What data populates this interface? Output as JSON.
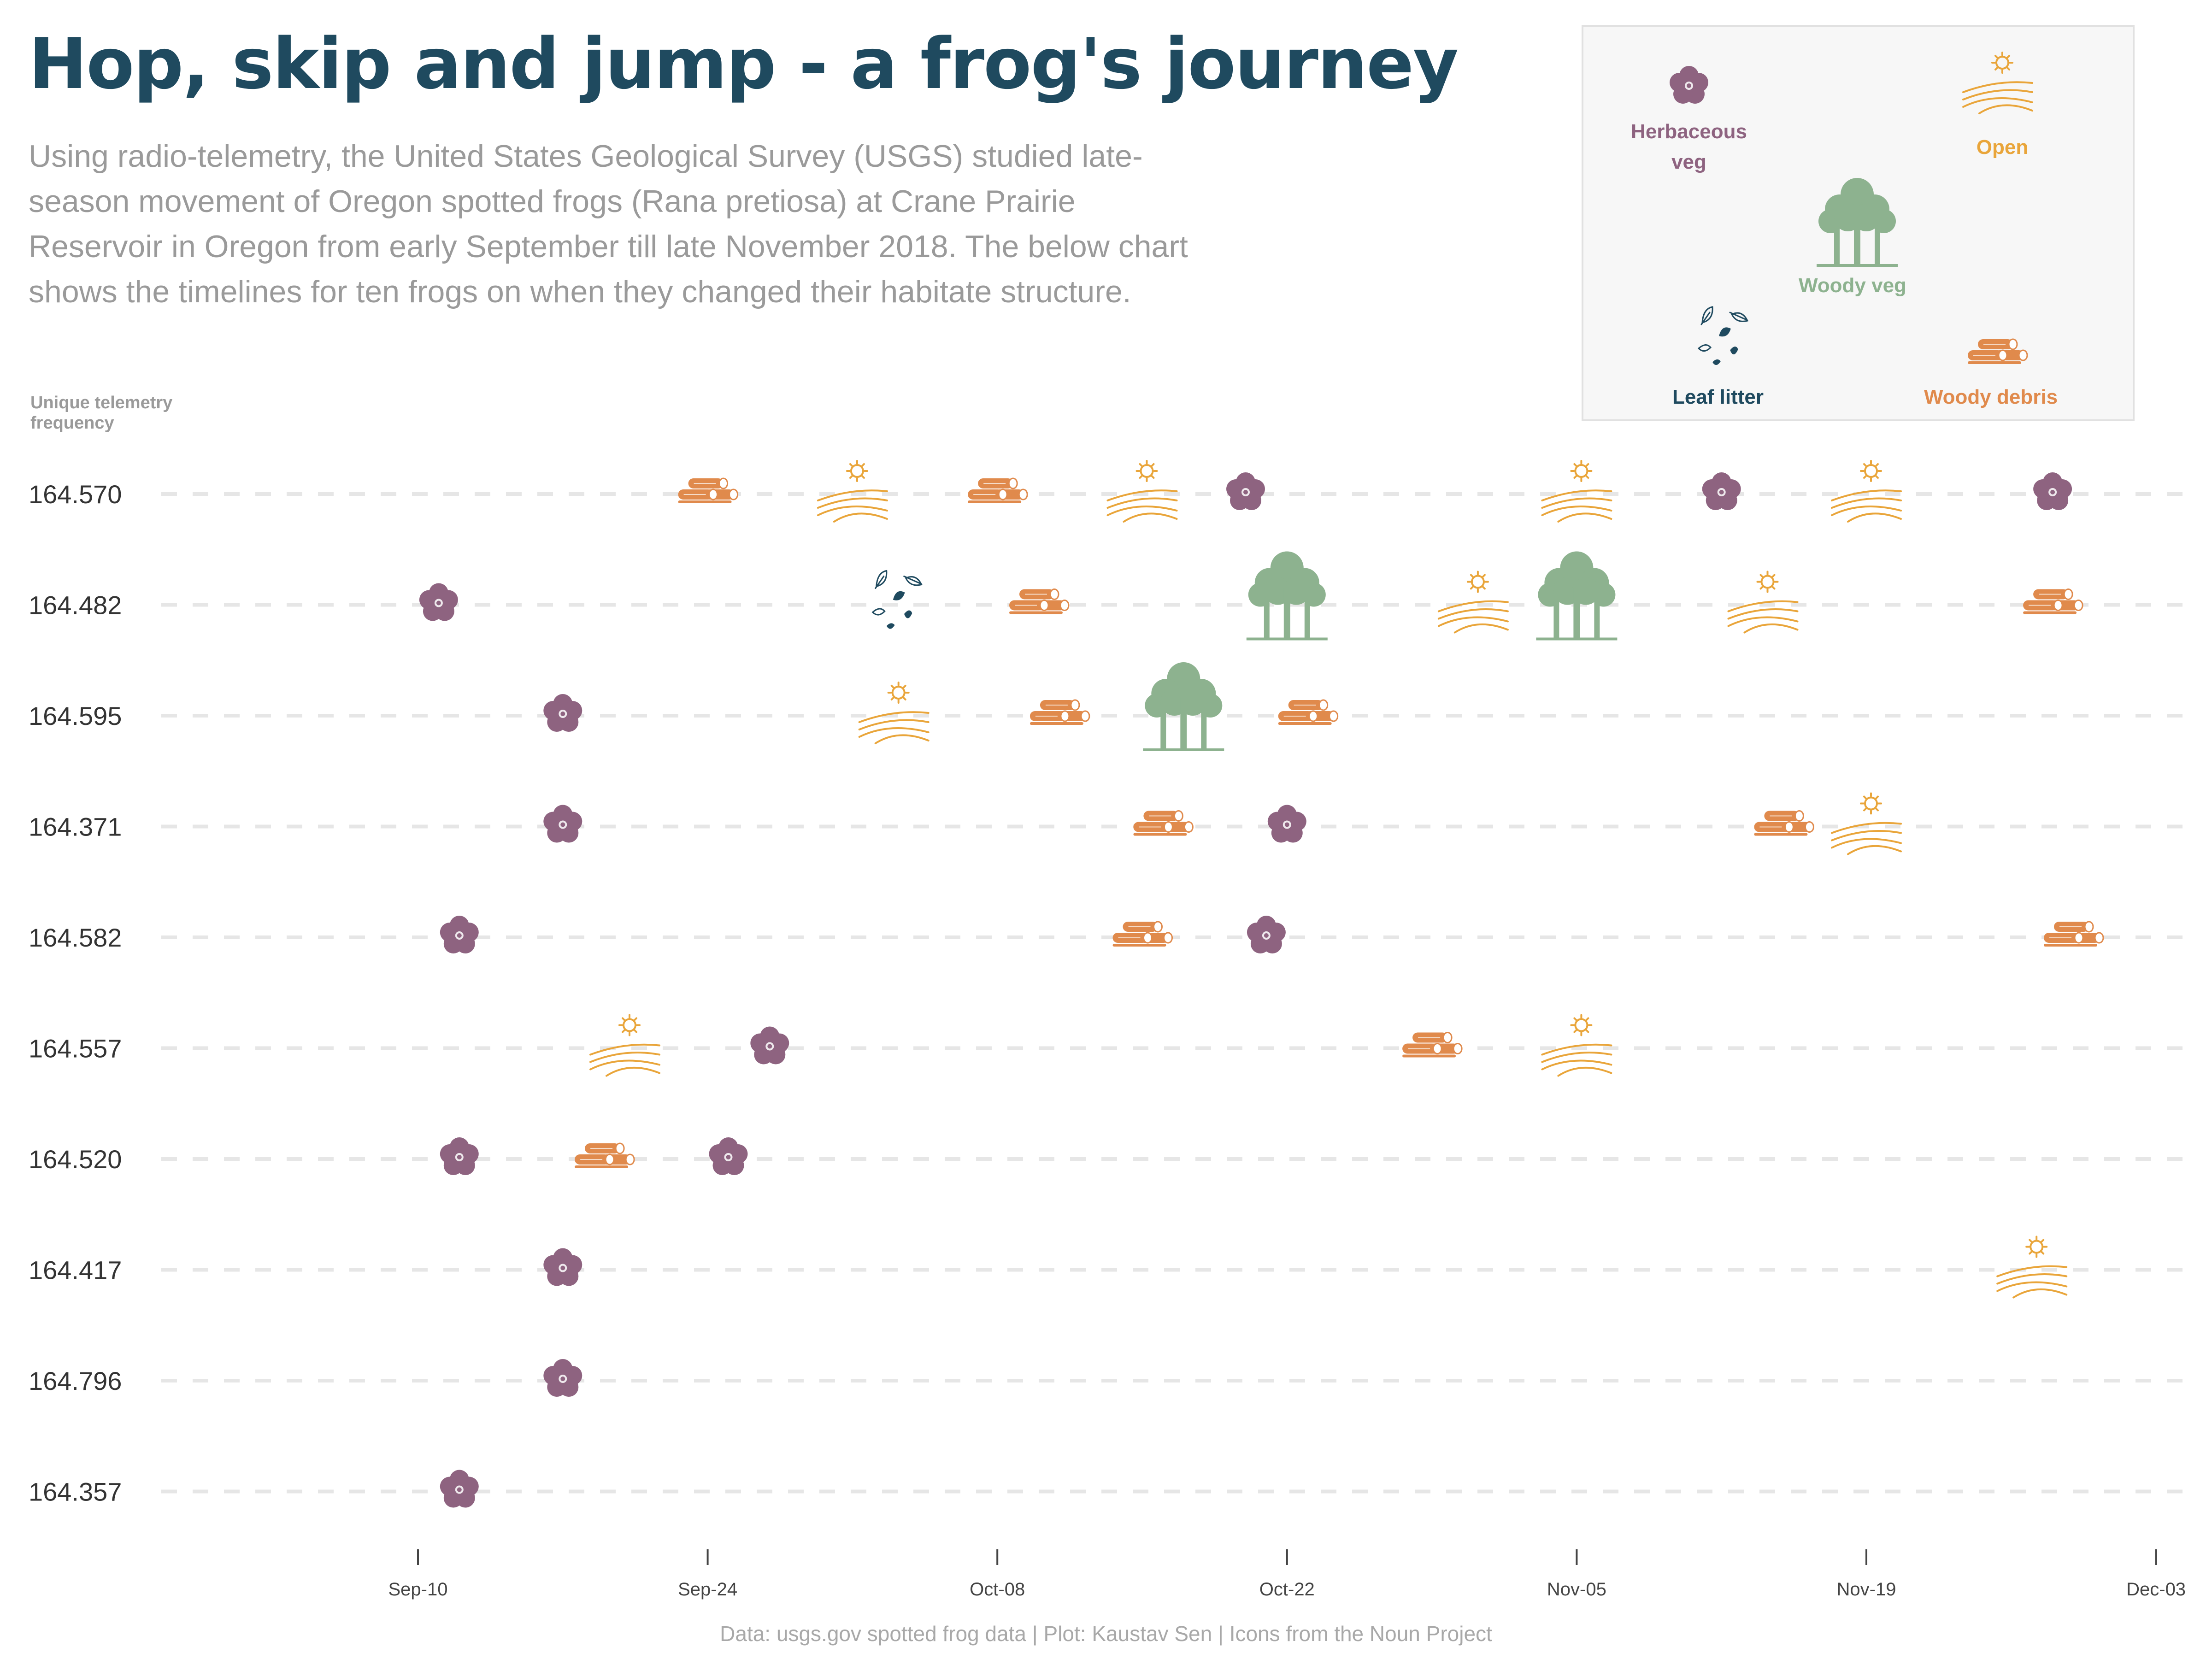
{
  "title": "Hop, skip and jump - a frog's journey",
  "subtitle": "Using radio-telemetry, the United States Geological Survey (USGS) studied late-season movement of Oregon spotted frogs (Rana pretiosa) at Crane Prairie Reservoir in Oregon from early September till late November 2018. The below chart shows the timelines for ten frogs on when they changed their habitate structure.",
  "caption": "Data: usgs.gov spotted frog data | Plot: Kaustav Sen | Icons from the Noun Project",
  "colors": {
    "title": "#1f4a5f",
    "herbaceous": "#8e6380",
    "open": "#e9a53a",
    "woody_veg": "#8db28f",
    "leaf_litter": "#1f4a5f",
    "woody_debris": "#e08a4c"
  },
  "legend": [
    {
      "key": "herbaceous",
      "label": [
        "Herbaceous",
        "veg"
      ],
      "icon": "flower-icon",
      "color": "#8e6380"
    },
    {
      "key": "open",
      "label": [
        "Open"
      ],
      "icon": "sun-field-icon",
      "color": "#e9a53a"
    },
    {
      "key": "woody_veg",
      "label": [
        "Woody veg"
      ],
      "icon": "tree-icon",
      "color": "#8db28f"
    },
    {
      "key": "leaf_litter",
      "label": [
        "Leaf litter"
      ],
      "icon": "leaves-icon",
      "color": "#1f4a5f"
    },
    {
      "key": "woody_debris",
      "label": [
        "Woody debris"
      ],
      "icon": "logs-icon",
      "color": "#e08a4c"
    }
  ],
  "chart_data": {
    "type": "scatter",
    "title": "",
    "xlabel": "",
    "ylabel": "Unique telemetry frequency",
    "x_ticks": [
      "Sep-10",
      "Sep-24",
      "Oct-08",
      "Oct-22",
      "Nov-05",
      "Nov-19",
      "Dec-03"
    ],
    "xlim": [
      "2018-08-28",
      "2018-12-04"
    ],
    "y_categories": [
      "164.570",
      "164.482",
      "164.595",
      "164.371",
      "164.582",
      "164.557",
      "164.520",
      "164.417",
      "164.796",
      "164.357"
    ],
    "grid": "horizontal dashed",
    "legend_position": "top-right",
    "series": [
      {
        "name": "164.570",
        "points": [
          {
            "date": "2018-09-24",
            "habitat": "woody_debris"
          },
          {
            "date": "2018-10-01",
            "habitat": "open"
          },
          {
            "date": "2018-10-08",
            "habitat": "woody_debris"
          },
          {
            "date": "2018-10-15",
            "habitat": "open"
          },
          {
            "date": "2018-10-20",
            "habitat": "herbaceous"
          },
          {
            "date": "2018-11-05",
            "habitat": "open"
          },
          {
            "date": "2018-11-12",
            "habitat": "herbaceous"
          },
          {
            "date": "2018-11-19",
            "habitat": "open"
          },
          {
            "date": "2018-11-28",
            "habitat": "herbaceous"
          }
        ]
      },
      {
        "name": "164.482",
        "points": [
          {
            "date": "2018-09-11",
            "habitat": "herbaceous"
          },
          {
            "date": "2018-10-03",
            "habitat": "leaf_litter"
          },
          {
            "date": "2018-10-10",
            "habitat": "woody_debris"
          },
          {
            "date": "2018-10-22",
            "habitat": "woody_veg"
          },
          {
            "date": "2018-10-31",
            "habitat": "open"
          },
          {
            "date": "2018-11-05",
            "habitat": "woody_veg"
          },
          {
            "date": "2018-11-14",
            "habitat": "open"
          },
          {
            "date": "2018-11-28",
            "habitat": "woody_debris"
          }
        ]
      },
      {
        "name": "164.595",
        "points": [
          {
            "date": "2018-09-17",
            "habitat": "herbaceous"
          },
          {
            "date": "2018-10-03",
            "habitat": "open"
          },
          {
            "date": "2018-10-11",
            "habitat": "woody_debris"
          },
          {
            "date": "2018-10-17",
            "habitat": "woody_veg"
          },
          {
            "date": "2018-10-23",
            "habitat": "woody_debris"
          }
        ]
      },
      {
        "name": "164.371",
        "points": [
          {
            "date": "2018-09-17",
            "habitat": "herbaceous"
          },
          {
            "date": "2018-10-16",
            "habitat": "woody_debris"
          },
          {
            "date": "2018-10-22",
            "habitat": "herbaceous"
          },
          {
            "date": "2018-11-15",
            "habitat": "woody_debris"
          },
          {
            "date": "2018-11-19",
            "habitat": "open"
          }
        ]
      },
      {
        "name": "164.582",
        "points": [
          {
            "date": "2018-09-12",
            "habitat": "herbaceous"
          },
          {
            "date": "2018-10-15",
            "habitat": "woody_debris"
          },
          {
            "date": "2018-10-21",
            "habitat": "herbaceous"
          },
          {
            "date": "2018-11-29",
            "habitat": "woody_debris"
          }
        ]
      },
      {
        "name": "164.557",
        "points": [
          {
            "date": "2018-09-20",
            "habitat": "open"
          },
          {
            "date": "2018-09-27",
            "habitat": "herbaceous"
          },
          {
            "date": "2018-10-29",
            "habitat": "woody_debris"
          },
          {
            "date": "2018-11-05",
            "habitat": "open"
          }
        ]
      },
      {
        "name": "164.520",
        "points": [
          {
            "date": "2018-09-12",
            "habitat": "herbaceous"
          },
          {
            "date": "2018-09-19",
            "habitat": "woody_debris"
          },
          {
            "date": "2018-09-25",
            "habitat": "herbaceous"
          }
        ]
      },
      {
        "name": "164.417",
        "points": [
          {
            "date": "2018-09-17",
            "habitat": "herbaceous"
          },
          {
            "date": "2018-11-27",
            "habitat": "open"
          }
        ]
      },
      {
        "name": "164.796",
        "points": [
          {
            "date": "2018-09-17",
            "habitat": "herbaceous"
          }
        ]
      },
      {
        "name": "164.357",
        "points": [
          {
            "date": "2018-09-12",
            "habitat": "herbaceous"
          }
        ]
      }
    ]
  }
}
